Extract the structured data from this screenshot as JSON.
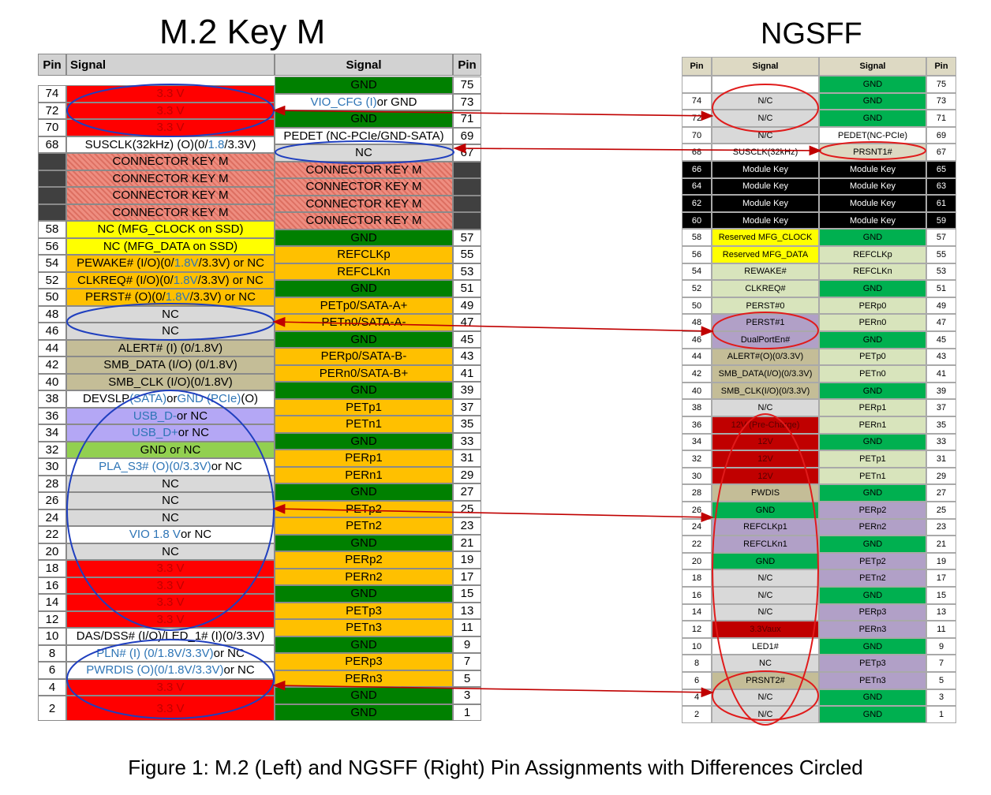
{
  "m2": {
    "title": "M.2 Key M",
    "headers": {
      "pin_left": "Pin",
      "signal_left": "Signal",
      "signal_right": "Signal",
      "pin_right": "Pin"
    },
    "left": [
      {
        "pin": "74",
        "signal": "3.3 V",
        "color": "#ff0000"
      },
      {
        "pin": "72",
        "signal": "3.3 V",
        "color": "#ff0000"
      },
      {
        "pin": "70",
        "signal": "3.3 V",
        "color": "#ff0000"
      },
      {
        "pin": "68",
        "signal": "SUSCLK(32kHz) (O)(0/1.8/3.3V)",
        "color": "#ffffff"
      },
      {
        "pin": "",
        "signal": "CONNECTOR KEY M",
        "color": "hatch",
        "pin_color": "#404040"
      },
      {
        "pin": "",
        "signal": "CONNECTOR KEY M",
        "color": "hatch",
        "pin_color": "#404040"
      },
      {
        "pin": "",
        "signal": "CONNECTOR KEY M",
        "color": "hatch",
        "pin_color": "#404040"
      },
      {
        "pin": "",
        "signal": "CONNECTOR KEY M",
        "color": "hatch",
        "pin_color": "#404040"
      },
      {
        "pin": "58",
        "signal": "NC (MFG_CLOCK on SSD)",
        "color": "#ffff00"
      },
      {
        "pin": "56",
        "signal": "NC (MFG_DATA on SSD)",
        "color": "#ffff00"
      },
      {
        "pin": "54",
        "signal": "PEWAKE# (I/O)(0/1.8V/3.3V) or NC",
        "color": "#ffc000"
      },
      {
        "pin": "52",
        "signal": "CLKREQ# (I/O)(0/1.8V/3.3V) or NC",
        "color": "#ffc000"
      },
      {
        "pin": "50",
        "signal": "PERST# (O)(0/1.8V/3.3V) or NC",
        "color": "#ffc000"
      },
      {
        "pin": "48",
        "signal": "NC",
        "color": "#d9d9d9"
      },
      {
        "pin": "46",
        "signal": "NC",
        "color": "#d9d9d9"
      },
      {
        "pin": "44",
        "signal": "ALERT# (I) (0/1.8V)",
        "color": "#c4bd97"
      },
      {
        "pin": "42",
        "signal": "SMB_DATA (I/O) (0/1.8V)",
        "color": "#c4bd97"
      },
      {
        "pin": "40",
        "signal": "SMB_CLK (I/O)(0/1.8V)",
        "color": "#c4bd97"
      },
      {
        "pin": "38",
        "signal": "DEVSLP (SATA) or GND (PCIe) (O)",
        "color": "#ffffff"
      },
      {
        "pin": "36",
        "signal": "USB_D- or NC",
        "color": "#b4a7f5"
      },
      {
        "pin": "34",
        "signal": "USB_D+ or NC",
        "color": "#b4a7f5"
      },
      {
        "pin": "32",
        "signal": "GND or NC",
        "color": "#92d050"
      },
      {
        "pin": "30",
        "signal": "PLA_S3# (O)(0/3.3V) or NC",
        "color": "#ffffff"
      },
      {
        "pin": "28",
        "signal": "NC",
        "color": "#d9d9d9"
      },
      {
        "pin": "26",
        "signal": "NC",
        "color": "#d9d9d9"
      },
      {
        "pin": "24",
        "signal": "NC",
        "color": "#d9d9d9"
      },
      {
        "pin": "22",
        "signal": "VIO 1.8 V or NC",
        "color": "#ffffff"
      },
      {
        "pin": "20",
        "signal": "NC",
        "color": "#d9d9d9"
      },
      {
        "pin": "18",
        "signal": "3.3 V",
        "color": "#ff0000"
      },
      {
        "pin": "16",
        "signal": "3.3 V",
        "color": "#ff0000"
      },
      {
        "pin": "14",
        "signal": "3.3 V",
        "color": "#ff0000"
      },
      {
        "pin": "12",
        "signal": "3.3 V",
        "color": "#ff0000"
      },
      {
        "pin": "10",
        "signal": "DAS/DSS# (I/O)/LED_1# (I)(0/3.3V)",
        "color": "#ffffff"
      },
      {
        "pin": "8",
        "signal": "PLN# (I) (0/1.8V/3.3V) or NC",
        "color": "#ffffff"
      },
      {
        "pin": "6",
        "signal": "PWRDIS (O)(0/1.8V/3.3V) or NC",
        "color": "#ffffff"
      },
      {
        "pin": "4",
        "signal": "3.3 V",
        "color": "#ff0000"
      },
      {
        "pin": "2",
        "signal": "3.3 V",
        "color": "#ff0000"
      }
    ],
    "right": [
      {
        "pin": "75",
        "signal": "GND",
        "color": "#008000"
      },
      {
        "pin": "73",
        "signal": "VIO_CFG (I) or GND",
        "color": "#ffffff"
      },
      {
        "pin": "71",
        "signal": "GND",
        "color": "#008000"
      },
      {
        "pin": "69",
        "signal": "PEDET (NC-PCIe/GND-SATA)",
        "color": "#ffffff"
      },
      {
        "pin": "67",
        "signal": "NC",
        "color": "#d9d9d9"
      },
      {
        "pin": "",
        "signal": "CONNECTOR KEY M",
        "color": "hatch",
        "pin_color": "#404040"
      },
      {
        "pin": "",
        "signal": "CONNECTOR KEY M",
        "color": "hatch",
        "pin_color": "#404040"
      },
      {
        "pin": "",
        "signal": "CONNECTOR KEY M",
        "color": "hatch",
        "pin_color": "#404040"
      },
      {
        "pin": "",
        "signal": "CONNECTOR KEY M",
        "color": "hatch",
        "pin_color": "#404040"
      },
      {
        "pin": "57",
        "signal": "GND",
        "color": "#008000"
      },
      {
        "pin": "55",
        "signal": "REFCLKp",
        "color": "#ffc000"
      },
      {
        "pin": "53",
        "signal": "REFCLKn",
        "color": "#ffc000"
      },
      {
        "pin": "51",
        "signal": "GND",
        "color": "#008000"
      },
      {
        "pin": "49",
        "signal": "PETp0/SATA-A+",
        "color": "#ffc000"
      },
      {
        "pin": "47",
        "signal": "PETn0/SATA-A-",
        "color": "#ffc000"
      },
      {
        "pin": "45",
        "signal": "GND",
        "color": "#008000"
      },
      {
        "pin": "43",
        "signal": "PERp0/SATA-B-",
        "color": "#ffc000"
      },
      {
        "pin": "41",
        "signal": "PERn0/SATA-B+",
        "color": "#ffc000"
      },
      {
        "pin": "39",
        "signal": "GND",
        "color": "#008000"
      },
      {
        "pin": "37",
        "signal": "PETp1",
        "color": "#ffc000"
      },
      {
        "pin": "35",
        "signal": "PETn1",
        "color": "#ffc000"
      },
      {
        "pin": "33",
        "signal": "GND",
        "color": "#008000"
      },
      {
        "pin": "31",
        "signal": "PERp1",
        "color": "#ffc000"
      },
      {
        "pin": "29",
        "signal": "PERn1",
        "color": "#ffc000"
      },
      {
        "pin": "27",
        "signal": "GND",
        "color": "#008000"
      },
      {
        "pin": "25",
        "signal": "PETp2",
        "color": "#ffc000"
      },
      {
        "pin": "23",
        "signal": "PETn2",
        "color": "#ffc000"
      },
      {
        "pin": "21",
        "signal": "GND",
        "color": "#008000"
      },
      {
        "pin": "19",
        "signal": "PERp2",
        "color": "#ffc000"
      },
      {
        "pin": "17",
        "signal": "PERn2",
        "color": "#ffc000"
      },
      {
        "pin": "15",
        "signal": "GND",
        "color": "#008000"
      },
      {
        "pin": "13",
        "signal": "PETp3",
        "color": "#ffc000"
      },
      {
        "pin": "11",
        "signal": "PETn3",
        "color": "#ffc000"
      },
      {
        "pin": "9",
        "signal": "GND",
        "color": "#008000"
      },
      {
        "pin": "7",
        "signal": "PERp3",
        "color": "#ffc000"
      },
      {
        "pin": "5",
        "signal": "PERn3",
        "color": "#ffc000"
      },
      {
        "pin": "3",
        "signal": "GND",
        "color": "#008000"
      },
      {
        "pin": "1",
        "signal": "GND",
        "color": "#008000"
      }
    ]
  },
  "ngsff": {
    "title": "NGSFF",
    "headers": {
      "pin_left": "Pin",
      "signal_left": "Signal",
      "signal_right": "Signal",
      "pin_right": "Pin"
    },
    "rows": [
      {
        "lpin": "",
        "lsig": "",
        "lcolor": "#ffffff",
        "rsig": "GND",
        "rcolor": "#00b050",
        "rpin": "75"
      },
      {
        "lpin": "74",
        "lsig": "N/C",
        "lcolor": "#d9d9d9",
        "rsig": "GND",
        "rcolor": "#00b050",
        "rpin": "73"
      },
      {
        "lpin": "72",
        "lsig": "N/C",
        "lcolor": "#d9d9d9",
        "rsig": "GND",
        "rcolor": "#00b050",
        "rpin": "71"
      },
      {
        "lpin": "70",
        "lsig": "N/C",
        "lcolor": "#d9d9d9",
        "rsig": "PEDET(NC-PCIe)",
        "rcolor": "#ffffff",
        "rpin": "69"
      },
      {
        "lpin": "68",
        "lsig": "SUSCLK(32kHz)",
        "lcolor": "#ffffff",
        "rsig": "PRSNT1#",
        "rcolor": "#ddd9c3",
        "rpin": "67"
      },
      {
        "lpin": "66",
        "lsig": "Module Key",
        "lcolor": "#000000",
        "rsig": "Module Key",
        "rcolor": "#000000",
        "rpin": "65",
        "dark": true
      },
      {
        "lpin": "64",
        "lsig": "Module Key",
        "lcolor": "#000000",
        "rsig": "Module Key",
        "rcolor": "#000000",
        "rpin": "63",
        "dark": true
      },
      {
        "lpin": "62",
        "lsig": "Module Key",
        "lcolor": "#000000",
        "rsig": "Module Key",
        "rcolor": "#000000",
        "rpin": "61",
        "dark": true
      },
      {
        "lpin": "60",
        "lsig": "Module Key",
        "lcolor": "#000000",
        "rsig": "Module Key",
        "rcolor": "#000000",
        "rpin": "59",
        "dark": true
      },
      {
        "lpin": "58",
        "lsig": "Reserved MFG_CLOCK",
        "lcolor": "#ffff00",
        "rsig": "GND",
        "rcolor": "#00b050",
        "rpin": "57"
      },
      {
        "lpin": "56",
        "lsig": "Reserved MFG_DATA",
        "lcolor": "#ffff00",
        "rsig": "REFCLKp",
        "rcolor": "#d8e4bc",
        "rpin": "55"
      },
      {
        "lpin": "54",
        "lsig": "REWAKE#",
        "lcolor": "#d8e4bc",
        "rsig": "REFCLKn",
        "rcolor": "#d8e4bc",
        "rpin": "53"
      },
      {
        "lpin": "52",
        "lsig": "CLKREQ#",
        "lcolor": "#d8e4bc",
        "rsig": "GND",
        "rcolor": "#00b050",
        "rpin": "51"
      },
      {
        "lpin": "50",
        "lsig": "PERST#0",
        "lcolor": "#d8e4bc",
        "rsig": "PERp0",
        "rcolor": "#d8e4bc",
        "rpin": "49"
      },
      {
        "lpin": "48",
        "lsig": "PERST#1",
        "lcolor": "#b1a0c7",
        "rsig": "PERn0",
        "rcolor": "#d8e4bc",
        "rpin": "47"
      },
      {
        "lpin": "46",
        "lsig": "DualPortEn#",
        "lcolor": "#b1a0c7",
        "rsig": "GND",
        "rcolor": "#00b050",
        "rpin": "45"
      },
      {
        "lpin": "44",
        "lsig": "ALERT#(O)(0/3.3V)",
        "lcolor": "#c4bd97",
        "rsig": "PETp0",
        "rcolor": "#d8e4bc",
        "rpin": "43"
      },
      {
        "lpin": "42",
        "lsig": "SMB_DATA(I/O)(0/3.3V)",
        "lcolor": "#c4bd97",
        "rsig": "PETn0",
        "rcolor": "#d8e4bc",
        "rpin": "41"
      },
      {
        "lpin": "40",
        "lsig": "SMB_CLK(I/O)(0/3.3V)",
        "lcolor": "#c4bd97",
        "rsig": "GND",
        "rcolor": "#00b050",
        "rpin": "39"
      },
      {
        "lpin": "38",
        "lsig": "N/C",
        "lcolor": "#d9d9d9",
        "rsig": "PERp1",
        "rcolor": "#d8e4bc",
        "rpin": "37"
      },
      {
        "lpin": "36",
        "lsig": "12V (Pre-Charge)",
        "lcolor": "#c00000",
        "rsig": "PERn1",
        "rcolor": "#d8e4bc",
        "rpin": "35"
      },
      {
        "lpin": "34",
        "lsig": "12V",
        "lcolor": "#c00000",
        "rsig": "GND",
        "rcolor": "#00b050",
        "rpin": "33"
      },
      {
        "lpin": "32",
        "lsig": "12V",
        "lcolor": "#c00000",
        "rsig": "PETp1",
        "rcolor": "#d8e4bc",
        "rpin": "31"
      },
      {
        "lpin": "30",
        "lsig": "12V",
        "lcolor": "#c00000",
        "rsig": "PETn1",
        "rcolor": "#d8e4bc",
        "rpin": "29"
      },
      {
        "lpin": "28",
        "lsig": "PWDIS",
        "lcolor": "#c4bd97",
        "rsig": "GND",
        "rcolor": "#00b050",
        "rpin": "27"
      },
      {
        "lpin": "26",
        "lsig": "GND",
        "lcolor": "#00b050",
        "rsig": "PERp2",
        "rcolor": "#b1a0c7",
        "rpin": "25"
      },
      {
        "lpin": "24",
        "lsig": "REFCLKp1",
        "lcolor": "#b1a0c7",
        "rsig": "PERn2",
        "rcolor": "#b1a0c7",
        "rpin": "23"
      },
      {
        "lpin": "22",
        "lsig": "REFCLKn1",
        "lcolor": "#b1a0c7",
        "rsig": "GND",
        "rcolor": "#00b050",
        "rpin": "21"
      },
      {
        "lpin": "20",
        "lsig": "GND",
        "lcolor": "#00b050",
        "rsig": "PETp2",
        "rcolor": "#b1a0c7",
        "rpin": "19"
      },
      {
        "lpin": "18",
        "lsig": "N/C",
        "lcolor": "#d9d9d9",
        "rsig": "PETn2",
        "rcolor": "#b1a0c7",
        "rpin": "17"
      },
      {
        "lpin": "16",
        "lsig": "N/C",
        "lcolor": "#d9d9d9",
        "rsig": "GND",
        "rcolor": "#00b050",
        "rpin": "15"
      },
      {
        "lpin": "14",
        "lsig": "N/C",
        "lcolor": "#d9d9d9",
        "rsig": "PERp3",
        "rcolor": "#b1a0c7",
        "rpin": "13"
      },
      {
        "lpin": "12",
        "lsig": "3.3Vaux",
        "lcolor": "#c00000",
        "rsig": "PERn3",
        "rcolor": "#b1a0c7",
        "rpin": "11"
      },
      {
        "lpin": "10",
        "lsig": "LED1#",
        "lcolor": "#ffffff",
        "rsig": "GND",
        "rcolor": "#00b050",
        "rpin": "9"
      },
      {
        "lpin": "8",
        "lsig": "NC",
        "lcolor": "#d9d9d9",
        "rsig": "PETp3",
        "rcolor": "#b1a0c7",
        "rpin": "7"
      },
      {
        "lpin": "6",
        "lsig": "PRSNT2#",
        "lcolor": "#c4bd97",
        "rsig": "PETn3",
        "rcolor": "#b1a0c7",
        "rpin": "5"
      },
      {
        "lpin": "4",
        "lsig": "N/C",
        "lcolor": "#d9d9d9",
        "rsig": "GND",
        "rcolor": "#00b050",
        "rpin": "3"
      },
      {
        "lpin": "2",
        "lsig": "N/C",
        "lcolor": "#d9d9d9",
        "rsig": "GND",
        "rcolor": "#00b050",
        "rpin": "1"
      }
    ]
  },
  "caption": "Figure 1: M.2 (Left) and NGSFF (Right) Pin Assignments with Differences Circled",
  "annotation_colors": {
    "circle_blue": "#1f3fbf",
    "circle_red": "#e01b1b",
    "arrow": "#c00000"
  }
}
